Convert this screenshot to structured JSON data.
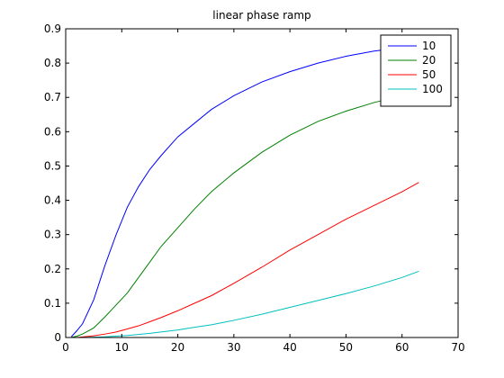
{
  "chart_data": {
    "type": "line",
    "title": "linear phase ramp",
    "xlabel": "",
    "ylabel": "",
    "xlim": [
      0,
      70
    ],
    "ylim": [
      0,
      0.9
    ],
    "xticks": [
      0,
      10,
      20,
      30,
      40,
      50,
      60,
      70
    ],
    "yticks": [
      0,
      0.1,
      0.2,
      0.3,
      0.4,
      0.5,
      0.6,
      0.7,
      0.8,
      0.9
    ],
    "xtick_labels": [
      "0",
      "10",
      "20",
      "30",
      "40",
      "50",
      "60",
      "70"
    ],
    "ytick_labels": [
      "0",
      "0.1",
      "0.2",
      "0.3",
      "0.4",
      "0.5",
      "0.6",
      "0.7",
      "0.8",
      "0.9"
    ],
    "grid": false,
    "legend_position": "top-right",
    "x": [
      1,
      2,
      3,
      5,
      7,
      9,
      11,
      13,
      15,
      17,
      20,
      23,
      26,
      30,
      35,
      40,
      45,
      50,
      55,
      60,
      63
    ],
    "series": [
      {
        "name": "10",
        "color": "#0000ff",
        "values": [
          0.002,
          0.02,
          0.04,
          0.11,
          0.21,
          0.3,
          0.38,
          0.44,
          0.49,
          0.53,
          0.585,
          0.625,
          0.665,
          0.705,
          0.745,
          0.775,
          0.8,
          0.82,
          0.835,
          0.845,
          0.85
        ]
      },
      {
        "name": "20",
        "color": "#008000",
        "values": [
          0.0,
          0.004,
          0.01,
          0.028,
          0.06,
          0.095,
          0.13,
          0.175,
          0.22,
          0.265,
          0.32,
          0.375,
          0.425,
          0.48,
          0.54,
          0.59,
          0.63,
          0.66,
          0.685,
          0.705,
          0.71
        ]
      },
      {
        "name": "50",
        "color": "#ff0000",
        "values": [
          0.0,
          0.0,
          0.0015,
          0.005,
          0.01,
          0.016,
          0.025,
          0.034,
          0.046,
          0.058,
          0.078,
          0.1,
          0.122,
          0.158,
          0.205,
          0.255,
          0.3,
          0.345,
          0.385,
          0.425,
          0.452
        ]
      },
      {
        "name": "100",
        "color": "#00bfbf",
        "values": [
          0.0,
          0.0,
          0.0,
          0.001,
          0.002,
          0.004,
          0.006,
          0.009,
          0.012,
          0.016,
          0.022,
          0.03,
          0.037,
          0.05,
          0.068,
          0.088,
          0.108,
          0.128,
          0.15,
          0.175,
          0.193
        ]
      }
    ]
  }
}
